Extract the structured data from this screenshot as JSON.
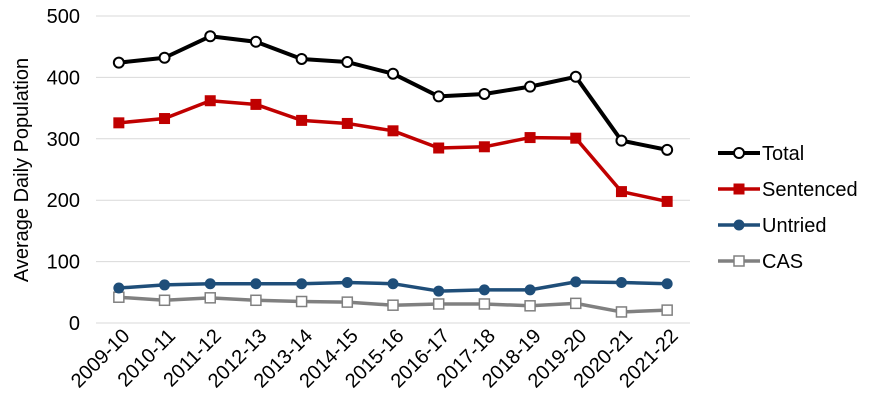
{
  "chart_data": {
    "type": "line",
    "title": "",
    "xlabel": "",
    "ylabel": "Average Daily Population",
    "ylim": [
      0,
      500
    ],
    "yticks": [
      0,
      100,
      200,
      300,
      400,
      500
    ],
    "grid": "horizontal",
    "legend_position": "right",
    "categories": [
      "2009-10",
      "2010-11",
      "2011-12",
      "2012-13",
      "2013-14",
      "2014-15",
      "2015-16",
      "2016-17",
      "2017-18",
      "2018-19",
      "2019-20",
      "2020-21",
      "2021-22"
    ],
    "series": [
      {
        "name": "Total",
        "color": "#000000",
        "marker": "circle-open",
        "values": [
          424,
          432,
          467,
          458,
          430,
          425,
          406,
          369,
          373,
          385,
          401,
          297,
          282
        ]
      },
      {
        "name": "Sentenced",
        "color": "#c00000",
        "marker": "square-filled",
        "values": [
          326,
          333,
          362,
          356,
          330,
          325,
          313,
          285,
          287,
          302,
          301,
          214,
          198
        ]
      },
      {
        "name": "Untried",
        "color": "#1f4e79",
        "marker": "circle-filled",
        "values": [
          57,
          62,
          64,
          64,
          64,
          66,
          64,
          52,
          54,
          54,
          67,
          66,
          64
        ]
      },
      {
        "name": "CAS",
        "color": "#808080",
        "marker": "square-open",
        "values": [
          42,
          37,
          41,
          37,
          35,
          34,
          29,
          31,
          31,
          28,
          32,
          18,
          21
        ]
      }
    ]
  }
}
